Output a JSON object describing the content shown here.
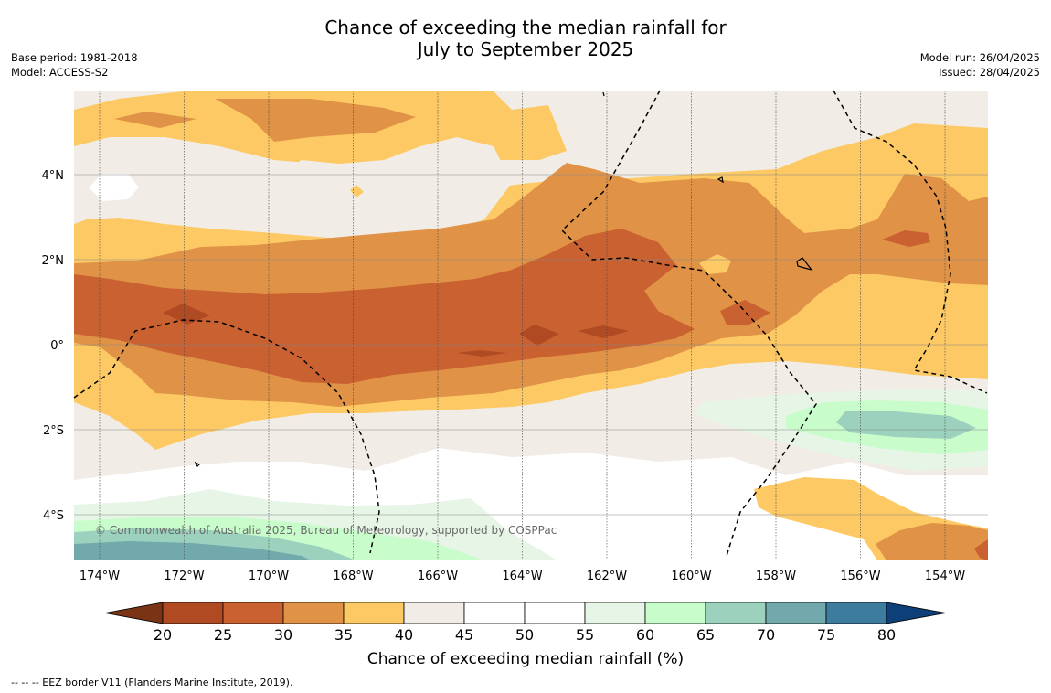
{
  "title_line1": "Chance of exceeding the median rainfall for",
  "title_line2": "July to September 2025",
  "base_period": "Base period: 1981-2018",
  "model": "Model: ACCESS-S2",
  "model_run": "Model run: 26/04/2025",
  "issued": "Issued: 28/04/2025",
  "copyright": "© Commonwealth of Australia 2025, Bureau of Meteorology, supported by COSPPac",
  "footer_note": "--  --  -- EEZ border V11 (Flanders Marine Institute, 2019).",
  "lon_labels": [
    "174°W",
    "172°W",
    "170°W",
    "168°W",
    "166°W",
    "164°W",
    "162°W",
    "160°W",
    "158°W",
    "156°W",
    "154°W"
  ],
  "lat_labels": [
    "4°N",
    "2°N",
    "0°",
    "2°S",
    "4°S"
  ],
  "colorbar": {
    "title": "Chance of exceeding median rainfall (%)",
    "ticks": [
      "20",
      "25",
      "30",
      "35",
      "40",
      "45",
      "50",
      "55",
      "60",
      "65",
      "70",
      "75",
      "80"
    ],
    "colors": {
      "lt20": "#7a3415",
      "c20_25": "#b04a23",
      "c25_30": "#c96131",
      "c30_35": "#e09246",
      "c35_40": "#fdc964",
      "c40_45": "#f1ede6",
      "c45_50": "#ffffff",
      "c50_55": "#ffffff",
      "c55_60": "#e7f5e7",
      "c60_65": "#c9fccb",
      "c65_70": "#9bd1bd",
      "c70_75": "#71a9ad",
      "c75_80": "#3e7c9e",
      "gt80": "#0d3f78"
    }
  }
}
